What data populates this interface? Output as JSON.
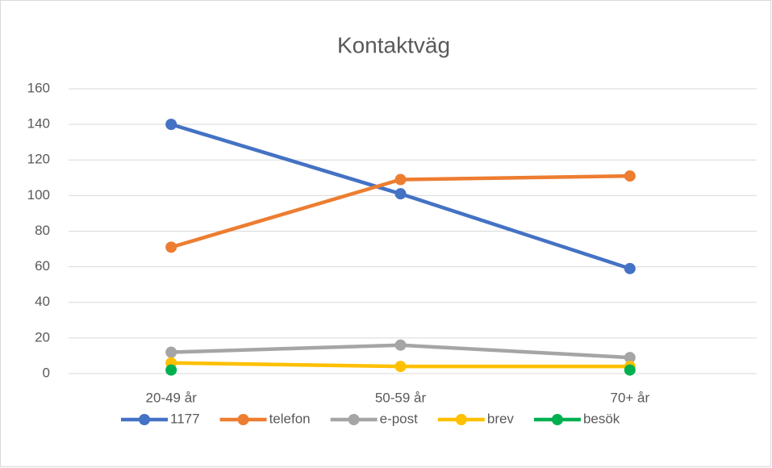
{
  "chart_data": {
    "type": "line",
    "title": "Kontaktväg",
    "categories": [
      "20-49 år",
      "50-59 år",
      "70+  år"
    ],
    "series": [
      {
        "name": "1177",
        "color": "#4472c4",
        "values": [
          140,
          101,
          59
        ]
      },
      {
        "name": "telefon",
        "color": "#ed7d31",
        "values": [
          71,
          109,
          111
        ]
      },
      {
        "name": "e-post",
        "color": "#a5a5a5",
        "values": [
          12,
          16,
          9
        ]
      },
      {
        "name": "brev",
        "color": "#ffc000",
        "values": [
          6,
          4,
          4
        ]
      },
      {
        "name": "besök",
        "color": "#00b050",
        "values": [
          2,
          null,
          2
        ]
      }
    ],
    "ylim": [
      0,
      160
    ],
    "yticks": [
      0,
      20,
      40,
      60,
      80,
      100,
      120,
      140,
      160
    ],
    "grid": true,
    "legend": "bottom"
  }
}
